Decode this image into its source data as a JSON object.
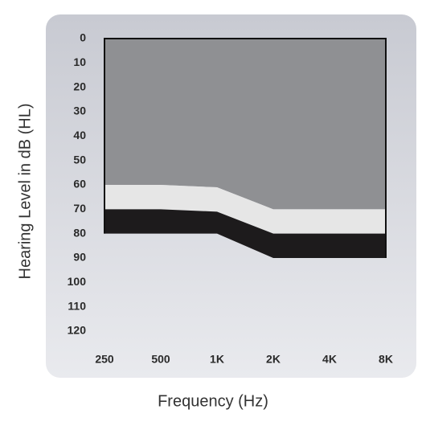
{
  "chart_data": {
    "type": "stacked-area",
    "x_label": "Frequency (Hz)",
    "y_label": "Hearing Level in dB (HL)",
    "categories": [
      "250",
      "500",
      "1K",
      "2K",
      "4K",
      "8K"
    ],
    "series": [
      {
        "color": "#8f9093",
        "values": [
          60,
          60,
          61,
          70,
          70,
          70
        ]
      },
      {
        "color": "#e6e6e6",
        "values": [
          10,
          10,
          10,
          10,
          10,
          10
        ]
      },
      {
        "color": "#1d1b1c",
        "values": [
          10,
          10,
          9,
          10,
          10,
          10
        ]
      }
    ],
    "ylim": [
      0,
      120
    ],
    "y_reversed": true,
    "yticks": [
      0,
      10,
      20,
      30,
      40,
      50,
      60,
      70,
      80,
      90,
      100,
      110,
      120
    ]
  }
}
